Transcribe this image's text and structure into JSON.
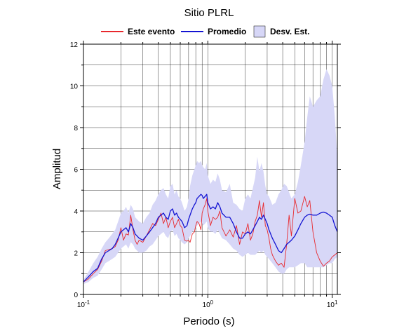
{
  "chart_data": {
    "type": "line",
    "title": "Sitio PLRL",
    "xlabel": "Periodo (s)",
    "ylabel": "Amplitud",
    "xscale": "log",
    "xlim": [
      0.1,
      11
    ],
    "ylim": [
      0,
      12
    ],
    "x_ticks": [
      {
        "base": "10",
        "exp": "-1"
      },
      {
        "base": "10",
        "exp": "0"
      },
      {
        "base": "10",
        "exp": "1"
      }
    ],
    "x_tick_text": [
      "10-1",
      "10^0",
      "10^1"
    ],
    "y_ticks": [
      "0",
      "2",
      "4",
      "6",
      "8",
      "10",
      "12"
    ],
    "grid": true,
    "legend_position": "top",
    "series": [
      {
        "name": "Este evento",
        "color": "#e8282d",
        "x": [
          0.1,
          0.11,
          0.12,
          0.13,
          0.14,
          0.15,
          0.16,
          0.17,
          0.18,
          0.19,
          0.2,
          0.21,
          0.22,
          0.23,
          0.24,
          0.25,
          0.26,
          0.27,
          0.28,
          0.3,
          0.32,
          0.34,
          0.36,
          0.38,
          0.4,
          0.42,
          0.44,
          0.46,
          0.48,
          0.5,
          0.52,
          0.54,
          0.56,
          0.58,
          0.6,
          0.62,
          0.65,
          0.68,
          0.7,
          0.72,
          0.75,
          0.78,
          0.8,
          0.82,
          0.85,
          0.88,
          0.9,
          0.92,
          0.95,
          0.98,
          1.0,
          1.05,
          1.1,
          1.15,
          1.2,
          1.25,
          1.3,
          1.4,
          1.5,
          1.6,
          1.7,
          1.8,
          1.9,
          2.0,
          2.1,
          2.2,
          2.3,
          2.4,
          2.5,
          2.6,
          2.7,
          2.8,
          2.9,
          3.0,
          3.1,
          3.2,
          3.3,
          3.5,
          3.7,
          3.9,
          4.1,
          4.3,
          4.5,
          4.7,
          5.0,
          5.3,
          5.6,
          6.0,
          6.3,
          6.6,
          7.0,
          7.5,
          8.0,
          8.5,
          9.0,
          9.5,
          10.0,
          10.5,
          11.0
        ],
        "y": [
          0.6,
          0.75,
          1.0,
          1.2,
          1.6,
          2.1,
          2.15,
          2.2,
          2.3,
          2.6,
          3.2,
          2.6,
          2.9,
          2.85,
          3.8,
          3.1,
          2.6,
          2.4,
          2.6,
          2.5,
          2.8,
          3.1,
          3.4,
          3.3,
          3.6,
          3.9,
          3.4,
          3.7,
          3.2,
          3.5,
          3.7,
          3.2,
          3.4,
          3.6,
          3.3,
          3.2,
          2.6,
          2.55,
          2.6,
          2.5,
          2.9,
          3.0,
          3.3,
          3.5,
          3.4,
          3.1,
          3.9,
          4.1,
          4.3,
          4.6,
          4.0,
          3.3,
          3.7,
          3.6,
          3.7,
          4.0,
          3.2,
          2.8,
          3.1,
          2.75,
          3.3,
          2.4,
          3.0,
          2.9,
          3.4,
          2.6,
          2.9,
          3.5,
          3.8,
          4.5,
          3.7,
          4.4,
          3.3,
          3.1,
          2.7,
          2.2,
          1.9,
          1.6,
          1.4,
          1.5,
          1.3,
          2.4,
          3.8,
          2.8,
          4.6,
          3.9,
          4.0,
          4.7,
          4.2,
          4.5,
          3.0,
          2.0,
          1.6,
          1.35,
          1.5,
          1.6,
          1.8,
          1.9,
          2.0
        ]
      },
      {
        "name": "Promedio",
        "color": "#1414d2",
        "x": [
          0.1,
          0.11,
          0.12,
          0.13,
          0.14,
          0.15,
          0.16,
          0.17,
          0.18,
          0.19,
          0.2,
          0.21,
          0.22,
          0.23,
          0.24,
          0.25,
          0.26,
          0.27,
          0.28,
          0.3,
          0.32,
          0.34,
          0.36,
          0.38,
          0.4,
          0.42,
          0.44,
          0.46,
          0.48,
          0.5,
          0.52,
          0.54,
          0.56,
          0.58,
          0.6,
          0.62,
          0.65,
          0.68,
          0.7,
          0.72,
          0.75,
          0.78,
          0.8,
          0.82,
          0.85,
          0.88,
          0.9,
          0.92,
          0.95,
          0.98,
          1.0,
          1.05,
          1.1,
          1.15,
          1.2,
          1.25,
          1.3,
          1.4,
          1.5,
          1.6,
          1.7,
          1.8,
          1.9,
          2.0,
          2.1,
          2.2,
          2.3,
          2.4,
          2.5,
          2.6,
          2.7,
          2.8,
          2.9,
          3.0,
          3.1,
          3.2,
          3.3,
          3.5,
          3.7,
          3.9,
          4.1,
          4.3,
          4.5,
          4.7,
          5.0,
          5.3,
          5.6,
          6.0,
          6.3,
          6.6,
          7.0,
          7.5,
          8.0,
          8.5,
          9.0,
          9.5,
          10.0,
          10.5,
          11.0
        ],
        "y": [
          0.6,
          0.85,
          1.1,
          1.25,
          1.7,
          2.0,
          2.1,
          2.2,
          2.4,
          2.7,
          3.0,
          3.1,
          3.2,
          3.0,
          3.4,
          3.2,
          2.9,
          2.8,
          2.7,
          2.6,
          2.8,
          3.0,
          3.2,
          3.4,
          3.7,
          3.8,
          3.9,
          3.7,
          3.6,
          4.0,
          4.1,
          3.8,
          3.9,
          3.7,
          3.6,
          3.5,
          3.2,
          3.3,
          3.6,
          3.8,
          4.1,
          4.3,
          4.4,
          4.6,
          4.7,
          4.8,
          4.75,
          4.6,
          4.7,
          4.8,
          4.4,
          4.1,
          4.2,
          4.1,
          4.4,
          4.2,
          3.9,
          3.7,
          3.7,
          3.4,
          3.0,
          2.7,
          2.7,
          2.9,
          3.0,
          2.9,
          3.1,
          3.3,
          3.5,
          3.7,
          3.6,
          3.8,
          3.6,
          3.4,
          3.1,
          2.9,
          2.7,
          2.4,
          2.1,
          2.0,
          2.2,
          2.4,
          2.5,
          2.6,
          2.8,
          3.1,
          3.4,
          3.7,
          3.8,
          3.85,
          3.8,
          3.8,
          3.9,
          3.95,
          3.9,
          3.8,
          3.7,
          3.3,
          3.0
        ]
      },
      {
        "name": "Desv. Est.",
        "color": "#d7d7f7",
        "kind": "band",
        "x": [
          0.1,
          0.11,
          0.12,
          0.13,
          0.14,
          0.15,
          0.16,
          0.17,
          0.18,
          0.19,
          0.2,
          0.21,
          0.22,
          0.23,
          0.24,
          0.25,
          0.26,
          0.27,
          0.28,
          0.3,
          0.32,
          0.34,
          0.36,
          0.38,
          0.4,
          0.42,
          0.44,
          0.46,
          0.48,
          0.5,
          0.52,
          0.54,
          0.56,
          0.58,
          0.6,
          0.62,
          0.65,
          0.68,
          0.7,
          0.72,
          0.75,
          0.78,
          0.8,
          0.82,
          0.85,
          0.88,
          0.9,
          0.92,
          0.95,
          0.98,
          1.0,
          1.05,
          1.1,
          1.15,
          1.2,
          1.25,
          1.3,
          1.4,
          1.5,
          1.6,
          1.7,
          1.8,
          1.9,
          2.0,
          2.1,
          2.2,
          2.3,
          2.4,
          2.5,
          2.6,
          2.7,
          2.8,
          2.9,
          3.0,
          3.1,
          3.2,
          3.3,
          3.5,
          3.7,
          3.9,
          4.1,
          4.3,
          4.5,
          4.7,
          5.0,
          5.3,
          5.6,
          6.0,
          6.3,
          6.6,
          7.0,
          7.5,
          8.0,
          8.5,
          9.0,
          9.5,
          10.0,
          10.5,
          11.0
        ],
        "upper": [
          0.7,
          1.1,
          1.5,
          1.8,
          2.2,
          2.5,
          2.7,
          2.9,
          3.1,
          3.5,
          3.9,
          4.0,
          4.2,
          3.9,
          4.3,
          4.1,
          3.7,
          3.6,
          3.5,
          3.4,
          3.7,
          3.9,
          4.3,
          4.5,
          4.8,
          5.0,
          5.1,
          4.8,
          4.6,
          5.2,
          5.3,
          4.8,
          5.0,
          4.7,
          4.6,
          4.4,
          4.0,
          4.2,
          4.6,
          5.2,
          5.7,
          6.0,
          6.2,
          6.4,
          6.3,
          6.4,
          6.2,
          6.1,
          6.0,
          6.3,
          5.7,
          5.3,
          5.5,
          5.4,
          5.8,
          5.5,
          5.0,
          4.9,
          5.3,
          4.4,
          4.3,
          4.1,
          4.0,
          4.6,
          4.8,
          4.6,
          5.1,
          5.6,
          6.6,
          5.9,
          6.3,
          5.9,
          5.2,
          4.8,
          4.7,
          4.5,
          4.3,
          4.4,
          4.8,
          5.0,
          5.3,
          5.2,
          4.9,
          4.6,
          4.8,
          5.4,
          6.2,
          7.3,
          8.5,
          9.5,
          9.0,
          9.3,
          9.5,
          10.3,
          10.8,
          10.5,
          10.0,
          8.5,
          6.5
        ],
        "lower": [
          0.5,
          0.6,
          0.8,
          0.9,
          1.2,
          1.5,
          1.6,
          1.7,
          1.8,
          2.0,
          2.2,
          2.3,
          2.4,
          2.2,
          2.5,
          2.4,
          2.2,
          2.1,
          2.0,
          2.0,
          2.1,
          2.3,
          2.4,
          2.6,
          2.8,
          2.9,
          3.0,
          2.8,
          2.7,
          3.0,
          3.1,
          2.8,
          2.9,
          2.7,
          2.6,
          2.5,
          2.4,
          2.5,
          2.7,
          2.8,
          3.0,
          3.1,
          3.2,
          3.3,
          3.4,
          3.5,
          3.4,
          3.3,
          3.4,
          3.5,
          3.2,
          3.0,
          3.0,
          2.9,
          3.1,
          2.9,
          2.7,
          2.6,
          2.4,
          2.2,
          2.1,
          1.9,
          1.8,
          1.9,
          2.0,
          1.9,
          1.9,
          1.9,
          2.0,
          2.1,
          2.0,
          2.1,
          1.9,
          1.8,
          1.7,
          1.6,
          1.5,
          1.3,
          1.1,
          1.0,
          1.0,
          1.2,
          1.3,
          1.3,
          1.3,
          1.4,
          1.5,
          1.5,
          1.3,
          1.3,
          1.3,
          1.3,
          1.3,
          1.3,
          1.4,
          1.5,
          1.5,
          1.7,
          1.8
        ]
      }
    ]
  }
}
